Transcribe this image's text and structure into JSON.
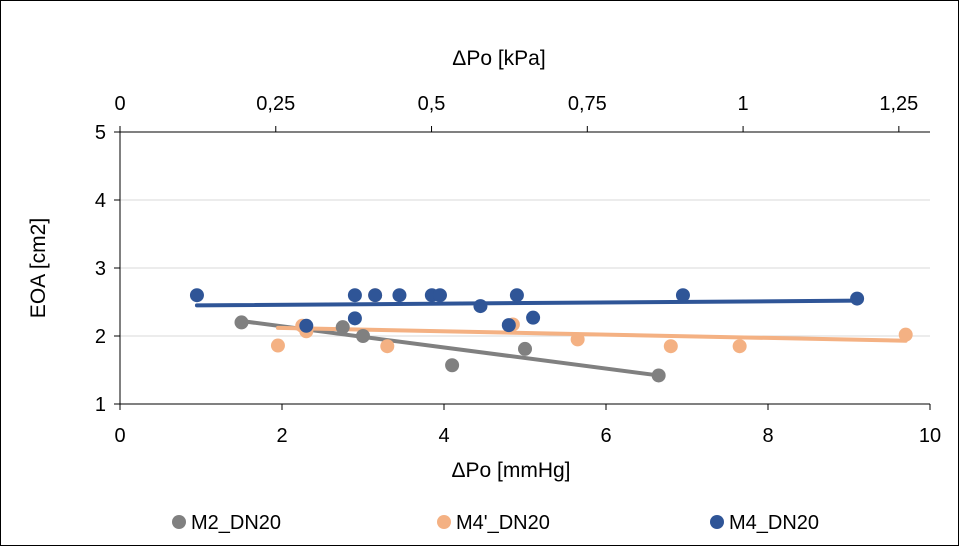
{
  "chart_data": {
    "type": "scatter",
    "title": "",
    "xlabel": "ΔPo [mmHg]",
    "x2label": "ΔPo [kPa]",
    "ylabel": "EOA [cm2]",
    "xlim": [
      0,
      10
    ],
    "x2lim": [
      0,
      1.3
    ],
    "ylim": [
      1,
      5
    ],
    "x_ticks": [
      "0",
      "2",
      "4",
      "6",
      "8",
      "10"
    ],
    "x2_ticks": [
      "0",
      "0,25",
      "0,5",
      "0,75",
      "1",
      "1,25"
    ],
    "y_ticks": [
      "1",
      "2",
      "3",
      "4",
      "5"
    ],
    "grid": true,
    "legend_position": "bottom",
    "series": [
      {
        "name": "M2_DN20",
        "color": "#808080",
        "points": [
          [
            1.5,
            2.2
          ],
          [
            2.75,
            2.13
          ],
          [
            3.0,
            2.0
          ],
          [
            4.1,
            1.57
          ],
          [
            5.0,
            1.81
          ],
          [
            6.65,
            1.42
          ]
        ],
        "trendline": [
          [
            1.5,
            2.22
          ],
          [
            6.65,
            1.42
          ]
        ]
      },
      {
        "name": "M4'_DN20",
        "color": "#F4B183",
        "points": [
          [
            1.95,
            1.86
          ],
          [
            2.25,
            2.15
          ],
          [
            2.3,
            2.07
          ],
          [
            3.3,
            1.85
          ],
          [
            3.15,
            2.6
          ],
          [
            4.85,
            2.17
          ],
          [
            5.65,
            1.95
          ],
          [
            6.8,
            1.85
          ],
          [
            7.65,
            1.85
          ],
          [
            9.7,
            2.02
          ]
        ],
        "trendline": [
          [
            1.95,
            2.12
          ],
          [
            9.7,
            1.93
          ]
        ]
      },
      {
        "name": "M4_DN20",
        "color": "#2F5597",
        "points": [
          [
            0.95,
            2.6
          ],
          [
            2.3,
            2.15
          ],
          [
            2.9,
            2.6
          ],
          [
            2.9,
            2.26
          ],
          [
            3.15,
            2.6
          ],
          [
            3.45,
            2.6
          ],
          [
            3.85,
            2.6
          ],
          [
            3.95,
            2.6
          ],
          [
            4.45,
            2.44
          ],
          [
            4.8,
            2.16
          ],
          [
            4.9,
            2.6
          ],
          [
            5.1,
            2.27
          ],
          [
            6.95,
            2.6
          ],
          [
            9.1,
            2.55
          ]
        ],
        "trendline": [
          [
            0.95,
            2.45
          ],
          [
            9.1,
            2.52
          ]
        ]
      }
    ]
  }
}
